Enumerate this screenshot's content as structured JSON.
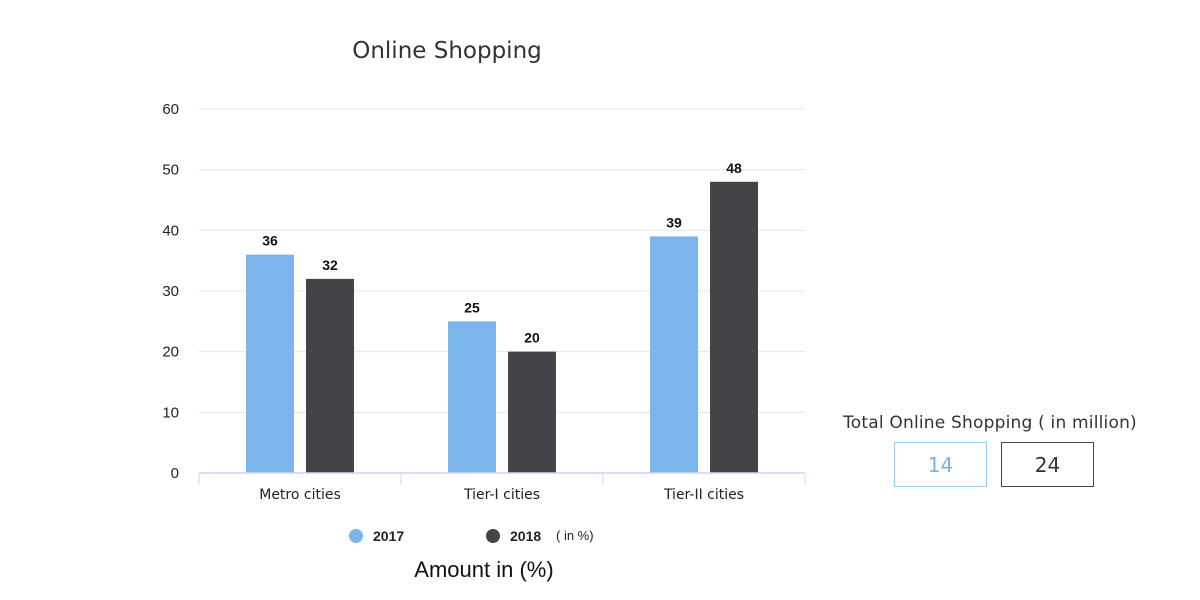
{
  "chart_data": {
    "type": "bar",
    "title": "Online Shopping",
    "categories": [
      "Metro cities",
      "Tier-I cities",
      "Tier-II cities"
    ],
    "series": [
      {
        "name": "2017",
        "values": [
          36,
          25,
          39
        ],
        "color": "#7cb5ec"
      },
      {
        "name": "2018",
        "values": [
          32,
          20,
          48
        ],
        "color": "#434348"
      }
    ],
    "y_ticks": [
      0,
      10,
      20,
      30,
      40,
      50,
      60
    ],
    "ylim": [
      0,
      60
    ],
    "grid": true,
    "legend_position": "bottom",
    "legend_note": "( in %)",
    "footer_label": "Amount in (%)"
  },
  "totals": {
    "title": "Total Online Shopping ( in million)",
    "value_2017": "14",
    "value_2018": "24"
  }
}
